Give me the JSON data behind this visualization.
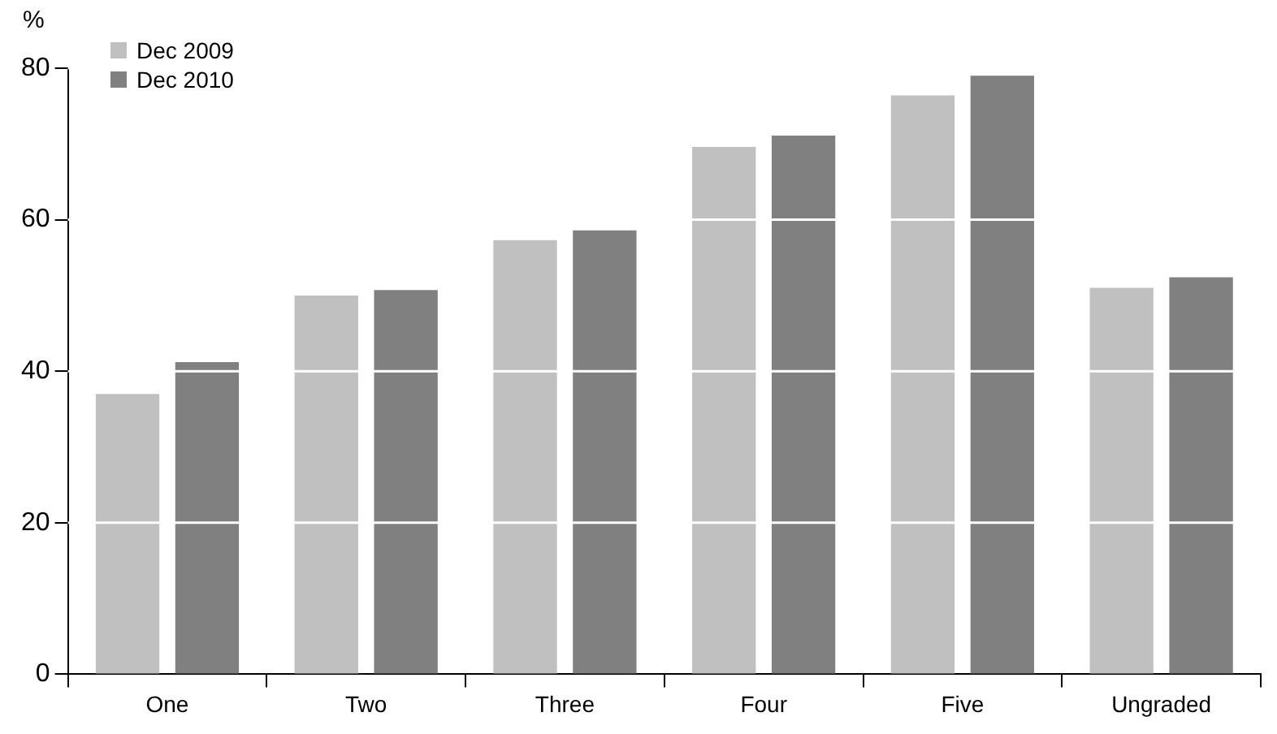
{
  "chart_data": {
    "type": "bar",
    "ylabel": "%",
    "categories": [
      "One",
      "Two",
      "Three",
      "Four",
      "Five",
      "Ungraded"
    ],
    "series": [
      {
        "name": "Dec 2009",
        "color": "#c0c0c0",
        "values": [
          37,
          50,
          57.3,
          69.6,
          76.4,
          51
        ]
      },
      {
        "name": "Dec 2010",
        "color": "#808080",
        "values": [
          41.2,
          50.7,
          58.6,
          71.1,
          79,
          52.4
        ]
      }
    ],
    "ylim": [
      0,
      80
    ],
    "yticks": [
      0,
      20,
      40,
      60,
      80
    ],
    "grid": "y",
    "legend": "top left"
  }
}
